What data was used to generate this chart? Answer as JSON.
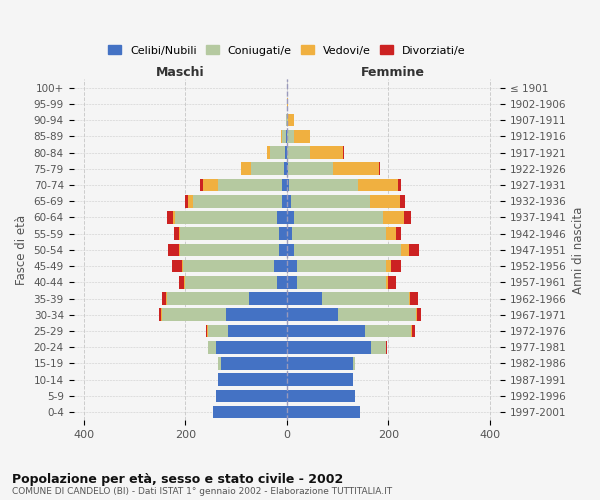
{
  "age_groups": [
    "100+",
    "95-99",
    "90-94",
    "85-89",
    "80-84",
    "75-79",
    "70-74",
    "65-69",
    "60-64",
    "55-59",
    "50-54",
    "45-49",
    "40-44",
    "35-39",
    "30-34",
    "25-29",
    "20-24",
    "15-19",
    "10-14",
    "5-9",
    "0-4"
  ],
  "birth_years": [
    "≤ 1901",
    "1902-1906",
    "1907-1911",
    "1912-1916",
    "1917-1921",
    "1922-1926",
    "1927-1931",
    "1932-1936",
    "1937-1941",
    "1942-1946",
    "1947-1951",
    "1952-1956",
    "1957-1961",
    "1962-1966",
    "1967-1971",
    "1972-1976",
    "1977-1981",
    "1982-1986",
    "1987-1991",
    "1992-1996",
    "1997-2001"
  ],
  "males": {
    "celibi": [
      0,
      0,
      0,
      2,
      3,
      5,
      10,
      10,
      20,
      15,
      15,
      25,
      20,
      75,
      120,
      115,
      140,
      130,
      135,
      140,
      145
    ],
    "coniugati": [
      0,
      0,
      2,
      8,
      30,
      65,
      125,
      175,
      200,
      195,
      195,
      180,
      180,
      160,
      125,
      40,
      15,
      5,
      0,
      0,
      0
    ],
    "vedovi": [
      0,
      0,
      0,
      2,
      5,
      20,
      30,
      10,
      5,
      3,
      3,
      2,
      2,
      2,
      2,
      2,
      0,
      0,
      0,
      0,
      0
    ],
    "divorziati": [
      0,
      0,
      0,
      0,
      0,
      0,
      5,
      5,
      10,
      10,
      20,
      20,
      10,
      8,
      5,
      2,
      0,
      0,
      0,
      0,
      0
    ]
  },
  "females": {
    "nubili": [
      0,
      0,
      0,
      0,
      0,
      2,
      5,
      8,
      15,
      10,
      15,
      20,
      20,
      70,
      100,
      155,
      165,
      130,
      130,
      135,
      145
    ],
    "coniugate": [
      0,
      0,
      3,
      15,
      45,
      90,
      135,
      155,
      175,
      185,
      210,
      175,
      175,
      170,
      155,
      90,
      30,
      5,
      0,
      0,
      0
    ],
    "vedove": [
      0,
      2,
      12,
      30,
      65,
      90,
      80,
      60,
      40,
      20,
      15,
      10,
      5,
      3,
      2,
      2,
      0,
      0,
      0,
      0,
      0
    ],
    "divorziate": [
      0,
      0,
      0,
      0,
      2,
      2,
      5,
      10,
      15,
      10,
      20,
      20,
      15,
      15,
      8,
      5,
      2,
      0,
      0,
      0,
      0
    ]
  },
  "colors": {
    "celibi_nubili": "#4472c4",
    "coniugati": "#b5c9a0",
    "vedovi": "#f0b040",
    "divorziati": "#cc2222"
  },
  "title": "Popolazione per età, sesso e stato civile - 2002",
  "subtitle": "COMUNE DI CANDELO (BI) - Dati ISTAT 1° gennaio 2002 - Elaborazione TUTTITALIA.IT",
  "xlim": 420,
  "ylabel_left": "Fasce di età",
  "ylabel_right": "Anni di nascita",
  "xlabel_left": "Maschi",
  "xlabel_right": "Femmine",
  "bg_color": "#f5f5f5",
  "grid_color": "#cccccc"
}
